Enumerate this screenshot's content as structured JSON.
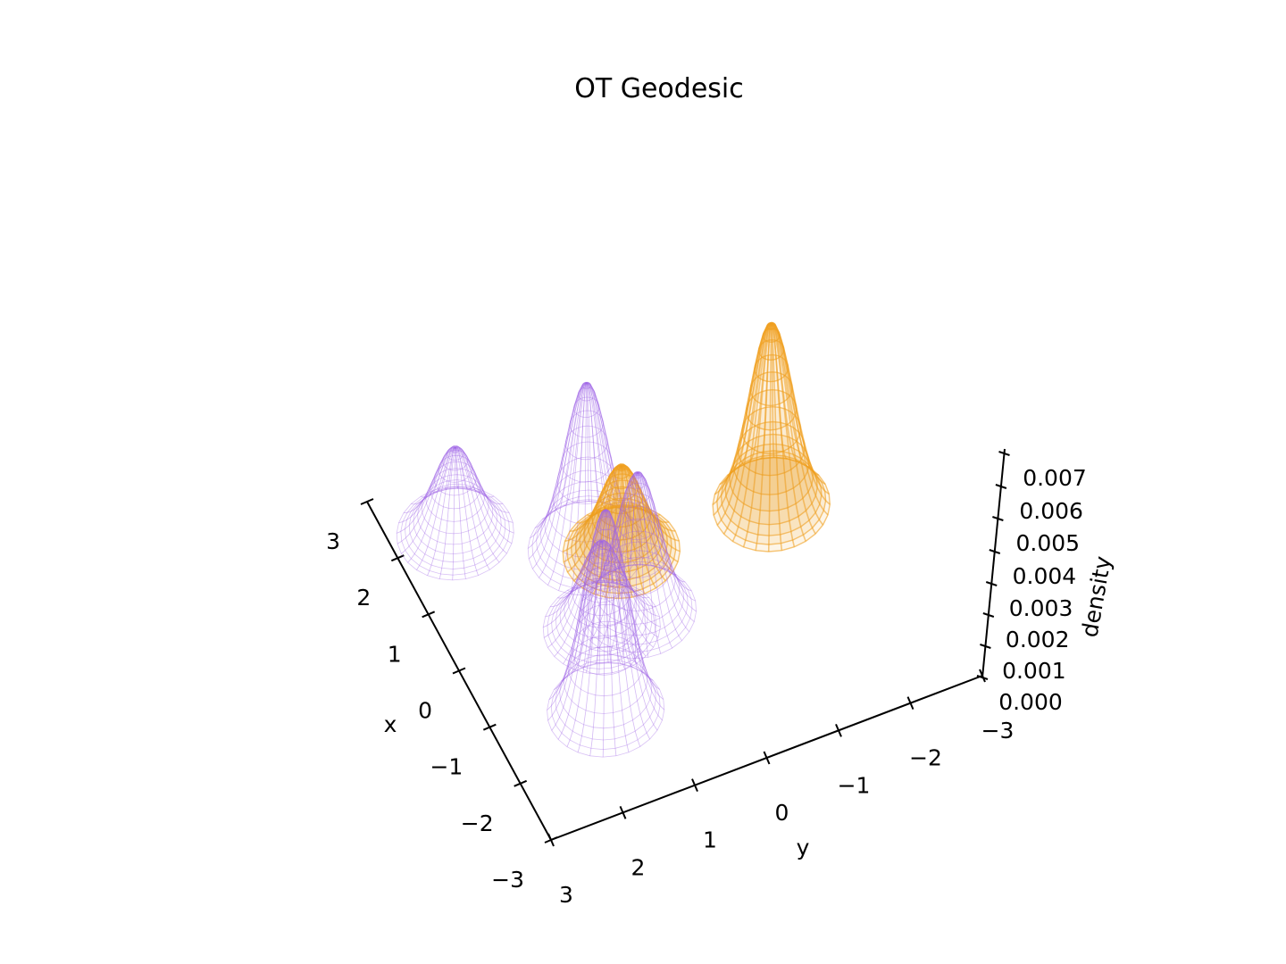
{
  "chart_data": {
    "type": "surface3d",
    "title": "OT Geodesic",
    "xlabel": "x",
    "ylabel": "y",
    "zlabel": "density",
    "xlim": [
      -3,
      3
    ],
    "ylim": [
      -3,
      3
    ],
    "zlim": [
      0,
      0.0075
    ],
    "x_ticks": [
      "−3",
      "−2",
      "−1",
      "0",
      "1",
      "2",
      "3"
    ],
    "y_ticks": [
      "3",
      "2",
      "1",
      "0",
      "−1",
      "−2",
      "−3"
    ],
    "z_ticks": [
      "0.000",
      "0.001",
      "0.002",
      "0.003",
      "0.004",
      "0.005",
      "0.006",
      "0.007"
    ],
    "colors": {
      "purple": "#a066e6",
      "orange": "#f0a020"
    },
    "series": [
      {
        "color": "purple",
        "style": "wireframe",
        "peaks": [
          {
            "x": 1.0,
            "y": 0.8,
            "peak": 0.0062
          },
          {
            "x": 2.0,
            "y": 2.2,
            "peak": 0.0032
          },
          {
            "x": -1.5,
            "y": 1.6,
            "peak": 0.0075
          },
          {
            "x": -0.2,
            "y": 1.1,
            "peak": 0.0032
          },
          {
            "x": -0.2,
            "y": 0.6,
            "peak": 0.0052
          }
        ]
      },
      {
        "color": "orange",
        "style": "surface",
        "peaks": [
          {
            "x": 0.8,
            "y": 0.4,
            "peak": 0.0032
          },
          {
            "x": 0.6,
            "y": -1.6,
            "peak": 0.0068
          }
        ]
      }
    ]
  }
}
